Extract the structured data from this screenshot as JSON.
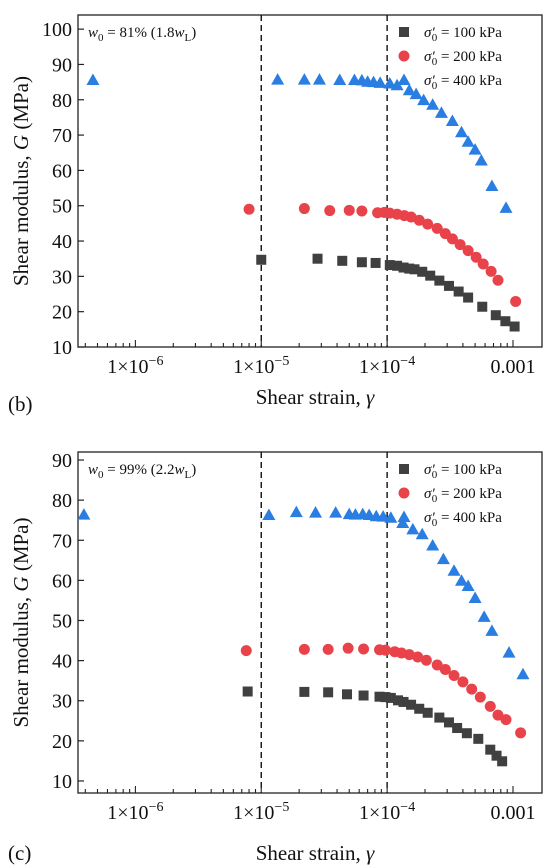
{
  "chart_data": [
    {
      "type": "scatter",
      "panel_label": "(b)",
      "annotation": {
        "w": "w",
        "w_sub": "0",
        "rest": " = 81% (1.8",
        "w2": "w",
        "w2_sub": "L",
        "close": ")"
      },
      "xlabel": "Shear strain, ",
      "xlabel_var": "γ",
      "ylabel": "Shear modulus, ",
      "ylabel_var": "G",
      "ylabel_unit": " (MPa)",
      "xscale": "log",
      "xlim": [
        3.5e-07,
        0.0017
      ],
      "ylim": [
        10,
        104
      ],
      "x_ticks": [
        {
          "value": 1e-06,
          "label": "1×10",
          "exp": "−6"
        },
        {
          "value": 1e-05,
          "label": "1×10",
          "exp": "−5"
        },
        {
          "value": 0.0001,
          "label": "1×10",
          "exp": "−4"
        },
        {
          "value": 0.001,
          "label": "0.001",
          "exp": ""
        }
      ],
      "y_ticks": [
        10,
        20,
        30,
        40,
        50,
        60,
        70,
        80,
        90,
        100
      ],
      "ref_lines_x": [
        1e-05,
        0.0001
      ],
      "legend_position": "top-right",
      "series": [
        {
          "name": "100 kPa",
          "marker": "square",
          "color": "#404040",
          "x": [
            1e-05,
            2.8e-05,
            4.4e-05,
            6.3e-05,
            8.1e-05,
            0.000105,
            0.00012,
            0.000135,
            0.00015,
            0.000165,
            0.00019,
            0.00022,
            0.00026,
            0.00031,
            0.00037,
            0.00044,
            0.00057,
            0.00073,
            0.00087,
            0.00103
          ],
          "y": [
            34.7,
            35.0,
            34.4,
            34.0,
            33.8,
            33.2,
            33.0,
            32.5,
            32.2,
            32.0,
            31.3,
            30.2,
            28.8,
            27.3,
            25.7,
            24.0,
            21.4,
            19.0,
            17.3,
            15.8
          ]
        },
        {
          "name": "200 kPa",
          "marker": "circle",
          "color": "#e8434a",
          "x": [
            8e-06,
            2.2e-05,
            3.5e-05,
            5e-05,
            6.3e-05,
            8.4e-05,
            9.5e-05,
            0.000105,
            0.00012,
            0.000137,
            0.000155,
            0.00018,
            0.00021,
            0.00025,
            0.00029,
            0.00033,
            0.00038,
            0.00044,
            0.00051,
            0.00058,
            0.00067,
            0.00076,
            0.00105
          ],
          "y": [
            49.0,
            49.2,
            48.6,
            48.7,
            48.5,
            48.0,
            48.1,
            47.9,
            47.6,
            47.2,
            46.8,
            45.9,
            44.8,
            43.6,
            42.1,
            40.6,
            39.0,
            37.3,
            35.4,
            33.5,
            31.4,
            28.9,
            22.9
          ]
        },
        {
          "name": "400 kPa",
          "marker": "triangle",
          "color": "#2a7de1",
          "x": [
            4.6e-07,
            1.35e-05,
            2.2e-05,
            2.9e-05,
            4.2e-05,
            5.5e-05,
            6.3e-05,
            7e-05,
            7.8e-05,
            8.8e-05,
            0.000105,
            0.00012,
            0.00015,
            0.00017,
            0.000195,
            0.00023,
            0.00027,
            0.00033,
            0.00039,
            0.00044,
            0.0005,
            0.00056,
            0.00068,
            0.00088
          ],
          "y": [
            85.6,
            85.7,
            85.7,
            85.7,
            85.6,
            85.6,
            85.5,
            85.1,
            85.0,
            84.8,
            84.6,
            84.1,
            82.7,
            81.6,
            79.9,
            78.6,
            76.3,
            74.0,
            70.8,
            68.1,
            65.9,
            62.8,
            55.6,
            49.4
          ]
        }
      ]
    },
    {
      "type": "scatter",
      "panel_label": "(c)",
      "annotation": {
        "w": "w",
        "w_sub": "0",
        "rest": " = 99% (2.2",
        "w2": "w",
        "w2_sub": "L",
        "close": ")"
      },
      "xlabel": "Shear strain, ",
      "xlabel_var": "γ",
      "ylabel": "Shear modulus, ",
      "ylabel_var": "G",
      "ylabel_unit": " (MPa)",
      "xscale": "log",
      "xlim": [
        3.5e-07,
        0.0017
      ],
      "ylim": [
        7,
        92
      ],
      "x_ticks": [
        {
          "value": 1e-06,
          "label": "1×10",
          "exp": "−6"
        },
        {
          "value": 1e-05,
          "label": "1×10",
          "exp": "−5"
        },
        {
          "value": 0.0001,
          "label": "1×10",
          "exp": "−4"
        },
        {
          "value": 0.001,
          "label": "0.001",
          "exp": ""
        }
      ],
      "y_ticks": [
        10,
        20,
        30,
        40,
        50,
        60,
        70,
        80,
        90
      ],
      "ref_lines_x": [
        1e-05,
        0.0001
      ],
      "legend_position": "top-right",
      "series": [
        {
          "name": "100 kPa",
          "marker": "square",
          "color": "#404040",
          "x": [
            7.8e-06,
            2.2e-05,
            3.4e-05,
            4.8e-05,
            6.5e-05,
            8.7e-05,
            9.7e-05,
            0.000107,
            0.000122,
            0.000135,
            0.000155,
            0.00018,
            0.00021,
            0.00026,
            0.00031,
            0.00036,
            0.00043,
            0.00053,
            0.00066,
            0.00074,
            0.00082
          ],
          "y": [
            32.3,
            32.2,
            32.1,
            31.6,
            31.3,
            31.0,
            30.9,
            30.7,
            30.1,
            29.7,
            29.0,
            28.0,
            27.0,
            25.8,
            24.6,
            23.2,
            21.9,
            20.5,
            17.8,
            16.3,
            14.9
          ]
        },
        {
          "name": "200 kPa",
          "marker": "circle",
          "color": "#e8434a",
          "x": [
            7.6e-06,
            2.2e-05,
            3.4e-05,
            4.9e-05,
            6.5e-05,
            8.7e-05,
            9.7e-05,
            0.000115,
            0.00013,
            0.00015,
            0.000175,
            0.000205,
            0.00025,
            0.00029,
            0.00034,
            0.0004,
            0.00047,
            0.00055,
            0.00066,
            0.00076,
            0.00088,
            0.00115
          ],
          "y": [
            42.5,
            42.8,
            42.8,
            43.1,
            42.9,
            42.7,
            42.6,
            42.2,
            41.9,
            41.5,
            40.9,
            40.1,
            38.9,
            37.8,
            36.3,
            34.7,
            32.9,
            30.9,
            28.6,
            26.4,
            25.3,
            22.0
          ]
        },
        {
          "name": "400 kPa",
          "marker": "triangle",
          "color": "#2a7de1",
          "x": [
            3.9e-07,
            1.15e-05,
            1.9e-05,
            2.7e-05,
            3.9e-05,
            5e-05,
            5.6e-05,
            6.4e-05,
            7.2e-05,
            8.2e-05,
            9.3e-05,
            0.000107,
            0.000133,
            0.00016,
            0.00019,
            0.00023,
            0.00028,
            0.00034,
            0.00039,
            0.00044,
            0.0005,
            0.00059,
            0.00068,
            0.00093,
            0.0012
          ],
          "y": [
            76.4,
            76.3,
            77.0,
            76.9,
            76.9,
            76.5,
            76.4,
            76.5,
            76.3,
            76.0,
            75.9,
            75.6,
            74.3,
            72.7,
            71.5,
            68.7,
            65.3,
            62.4,
            59.9,
            58.6,
            55.6,
            50.9,
            47.4,
            42.0,
            36.6
          ]
        }
      ]
    }
  ]
}
